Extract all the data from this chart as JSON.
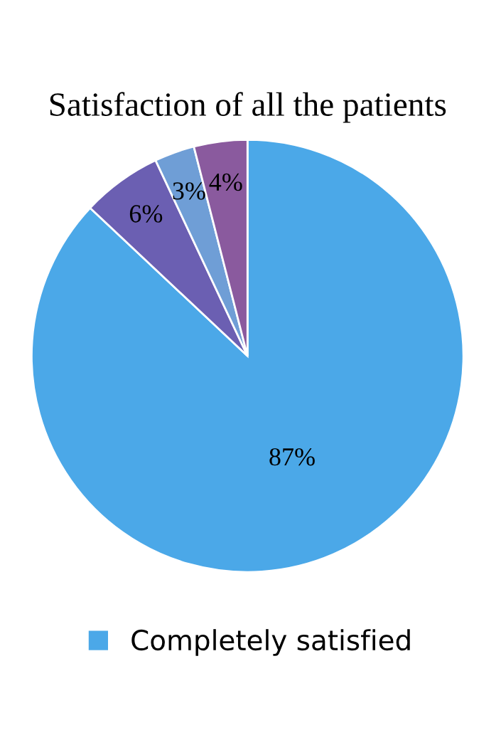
{
  "chart_data": {
    "type": "pie",
    "title": "Satisfaction of all the patients",
    "categories": [
      "Completely satisfied",
      null,
      null,
      null
    ],
    "values": [
      87,
      6,
      3,
      4
    ],
    "colors": [
      "#4ba8e8",
      "#6b5fb2",
      "#6f9ed6",
      "#8a5a9e"
    ],
    "value_labels": [
      "87%",
      "6%",
      "3%",
      "4%"
    ],
    "legend": "bottom"
  }
}
